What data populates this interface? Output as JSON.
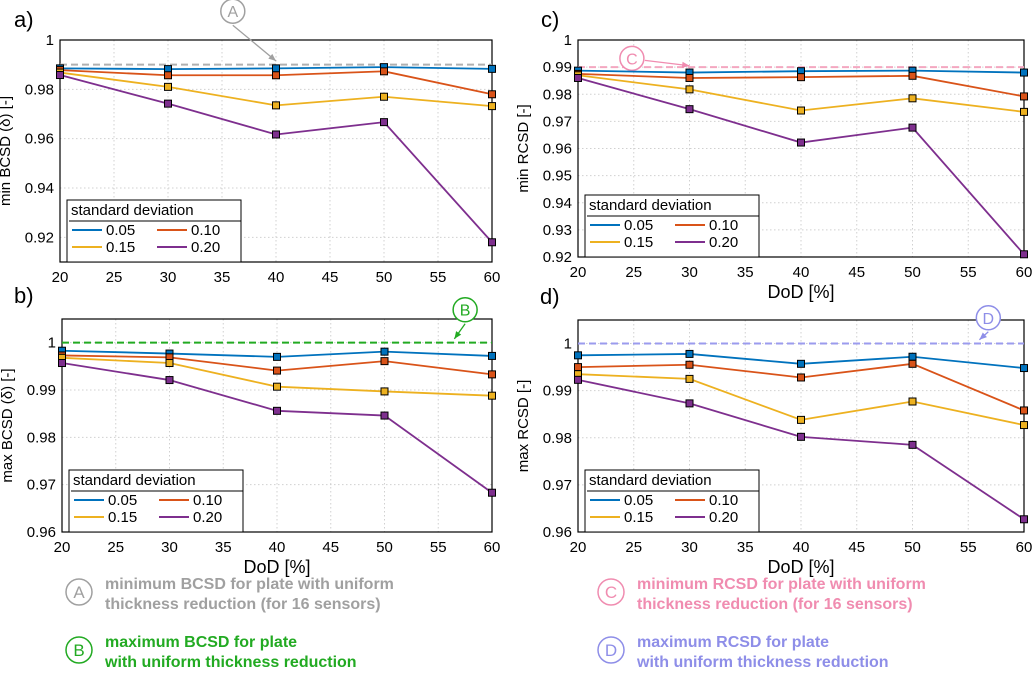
{
  "chart_data": [
    {
      "type": "line",
      "panel_label": "a)",
      "xlabel": "",
      "ylabel": "min BCSD (δ) [-]",
      "x": [
        20,
        30,
        40,
        50,
        60
      ],
      "xlim": [
        20,
        60
      ],
      "xticks": [
        "20",
        "25",
        "30",
        "35",
        "40",
        "45",
        "50",
        "55",
        "60"
      ],
      "ylim": [
        0.91,
        1.0
      ],
      "yticks": [
        "0.92",
        "0.94",
        "0.96",
        "0.98",
        "1"
      ],
      "grid": true,
      "legend_title": "standard deviation",
      "legend_position": "bottom-left",
      "series": [
        {
          "name": "0.05",
          "color": "#0072BD",
          "values": [
            0.9885,
            0.9882,
            0.9885,
            0.989,
            0.9883
          ]
        },
        {
          "name": "0.10",
          "color": "#D95319",
          "values": [
            0.9878,
            0.9857,
            0.9857,
            0.9873,
            0.978
          ]
        },
        {
          "name": "0.15",
          "color": "#EDB120",
          "values": [
            0.9868,
            0.981,
            0.9735,
            0.977,
            0.9732
          ]
        },
        {
          "name": "0.20",
          "color": "#7E2F8E",
          "values": [
            0.9858,
            0.9742,
            0.9617,
            0.9667,
            0.918
          ]
        }
      ],
      "reference": {
        "value": 0.99,
        "color": "#b0b0b0",
        "marker": "A",
        "marker_color": "#a0a0a0",
        "arrow_from": [
          36,
          1.006
        ],
        "arrow_to": [
          40,
          0.9915
        ]
      }
    },
    {
      "type": "line",
      "panel_label": "c)",
      "xlabel": "DoD [%]",
      "ylabel": "min RCSD [-]",
      "x": [
        20,
        30,
        40,
        50,
        60
      ],
      "xlim": [
        20,
        60
      ],
      "xticks": [
        "20",
        "25",
        "30",
        "35",
        "40",
        "45",
        "50",
        "55",
        "60"
      ],
      "ylim": [
        0.92,
        1.0
      ],
      "yticks": [
        "0.92",
        "0.93",
        "0.94",
        "0.95",
        "0.96",
        "0.97",
        "0.98",
        "0.99",
        "1"
      ],
      "grid": true,
      "legend_title": "standard deviation",
      "legend_position": "bottom-left",
      "series": [
        {
          "name": "0.05",
          "color": "#0072BD",
          "values": [
            0.9887,
            0.988,
            0.9885,
            0.9887,
            0.988
          ]
        },
        {
          "name": "0.10",
          "color": "#D95319",
          "values": [
            0.9875,
            0.986,
            0.9863,
            0.9868,
            0.9792
          ]
        },
        {
          "name": "0.15",
          "color": "#EDB120",
          "values": [
            0.987,
            0.9818,
            0.974,
            0.9785,
            0.9735
          ]
        },
        {
          "name": "0.20",
          "color": "#7E2F8E",
          "values": [
            0.986,
            0.9745,
            0.9622,
            0.9677,
            0.921
          ]
        }
      ],
      "reference": {
        "value": 0.99,
        "color": "#f4a7c0",
        "marker": "C",
        "marker_color": "#f08cb0",
        "arrow_from": [
          26,
          0.9925
        ],
        "arrow_to": [
          30,
          0.9905
        ]
      }
    },
    {
      "type": "line",
      "panel_label": "b)",
      "xlabel": "DoD [%]",
      "ylabel": "max BCSD (δ) [-]",
      "x": [
        20,
        30,
        40,
        50,
        60
      ],
      "xlim": [
        20,
        60
      ],
      "xticks": [
        "20",
        "25",
        "30",
        "35",
        "40",
        "45",
        "50",
        "55",
        "60"
      ],
      "ylim": [
        0.96,
        1.005
      ],
      "yticks": [
        "0.96",
        "0.97",
        "0.98",
        "0.99",
        "1"
      ],
      "grid": true,
      "legend_title": "standard deviation",
      "legend_position": "bottom-left",
      "series": [
        {
          "name": "0.05",
          "color": "#0072BD",
          "values": [
            0.9983,
            0.9977,
            0.997,
            0.9981,
            0.9972
          ]
        },
        {
          "name": "0.10",
          "color": "#D95319",
          "values": [
            0.9973,
            0.9969,
            0.9941,
            0.9961,
            0.9933
          ]
        },
        {
          "name": "0.15",
          "color": "#EDB120",
          "values": [
            0.9968,
            0.9957,
            0.9907,
            0.9897,
            0.9888
          ]
        },
        {
          "name": "0.20",
          "color": "#7E2F8E",
          "values": [
            0.9957,
            0.9921,
            0.9856,
            0.9846,
            0.9683
          ]
        }
      ],
      "reference": {
        "value": 1.0,
        "color": "#22aa22",
        "marker": "B",
        "marker_color": "#22aa22",
        "arrow_from": [
          57.5,
          1.004
        ],
        "arrow_to": [
          56.5,
          1.0008
        ]
      }
    },
    {
      "type": "line",
      "panel_label": "d)",
      "xlabel": "DoD [%]",
      "ylabel": "max RCSD [-]",
      "x": [
        20,
        30,
        40,
        50,
        60
      ],
      "xlim": [
        20,
        60
      ],
      "xticks": [
        "20",
        "25",
        "30",
        "35",
        "40",
        "45",
        "50",
        "55",
        "60"
      ],
      "ylim": [
        0.96,
        1.005
      ],
      "yticks": [
        "0.96",
        "0.97",
        "0.98",
        "0.99",
        "1"
      ],
      "grid": true,
      "legend_title": "standard deviation",
      "legend_position": "bottom-left",
      "series": [
        {
          "name": "0.05",
          "color": "#0072BD",
          "values": [
            0.9975,
            0.9978,
            0.9957,
            0.9972,
            0.9948
          ]
        },
        {
          "name": "0.10",
          "color": "#D95319",
          "values": [
            0.995,
            0.9955,
            0.9928,
            0.9957,
            0.9858
          ]
        },
        {
          "name": "0.15",
          "color": "#EDB120",
          "values": [
            0.9935,
            0.9925,
            0.9838,
            0.9877,
            0.9827
          ]
        },
        {
          "name": "0.20",
          "color": "#7E2F8E",
          "values": [
            0.9923,
            0.9873,
            0.9802,
            0.9785,
            0.9627
          ]
        }
      ],
      "reference": {
        "value": 1.0,
        "color": "#9b9bee",
        "marker": "D",
        "marker_color": "#8e8ee8",
        "arrow_from": [
          56.8,
          1.0025
        ],
        "arrow_to": [
          56,
          1.0008
        ]
      }
    }
  ],
  "footnotes": [
    {
      "marker": "A",
      "color": "#a0a0a0",
      "line1": "minimum BCSD for plate with uniform",
      "line2": "thickness reduction (for 16 sensors)"
    },
    {
      "marker": "B",
      "color": "#22aa22",
      "line1": "maximum BCSD for plate",
      "line2": "with uniform thickness reduction"
    },
    {
      "marker": "C",
      "color": "#f08cb0",
      "line1": "minimum RCSD for plate with uniform",
      "line2": "thickness reduction (for 16 sensors)"
    },
    {
      "marker": "D",
      "color": "#8e8ee8",
      "line1": "maximum RCSD for plate",
      "line2": "with uniform thickness reduction"
    }
  ]
}
